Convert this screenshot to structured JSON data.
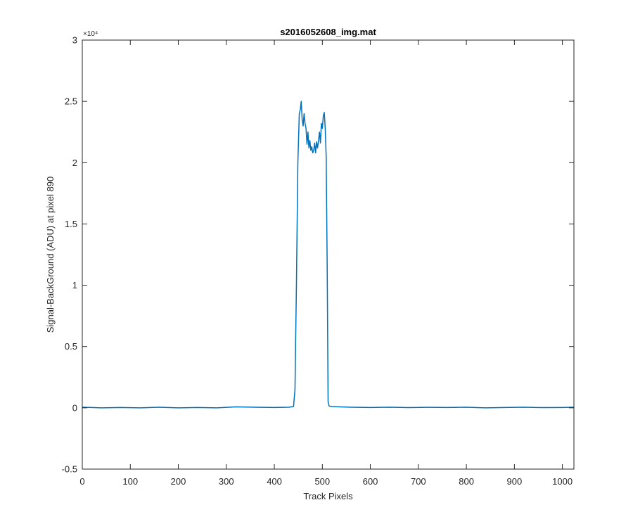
{
  "chart_data": {
    "type": "line",
    "title": "s2016052608_img.mat",
    "xlabel": "Track Pixels",
    "ylabel": "Signal-BackGround (ADU) at pixel 890",
    "xlim": [
      0,
      1024
    ],
    "ylim": [
      -5000,
      30000
    ],
    "x_ticks": [
      0,
      100,
      200,
      300,
      400,
      500,
      600,
      700,
      800,
      900,
      1000
    ],
    "x_tick_labels": [
      "0",
      "100",
      "200",
      "300",
      "400",
      "500",
      "600",
      "700",
      "800",
      "900",
      "1000"
    ],
    "y_ticks": [
      -5000,
      0,
      5000,
      10000,
      15000,
      20000,
      25000,
      30000
    ],
    "y_tick_labels": [
      "-0.5",
      "0",
      "0.5",
      "1",
      "1.5",
      "2",
      "2.5",
      "3"
    ],
    "y_exponent_label": "×10⁴",
    "grid": false,
    "box": true,
    "series": [
      {
        "color": "#0072BD",
        "x": [
          0,
          40,
          80,
          120,
          160,
          200,
          240,
          280,
          320,
          360,
          400,
          430,
          440,
          443,
          446,
          449,
          452,
          454,
          456,
          458,
          460,
          462,
          464,
          466,
          468,
          470,
          472,
          474,
          476,
          478,
          480,
          482,
          484,
          486,
          488,
          490,
          492,
          494,
          496,
          498,
          500,
          502,
          504,
          506,
          508,
          510,
          512,
          514,
          520,
          560,
          600,
          640,
          680,
          720,
          760,
          800,
          840,
          880,
          920,
          960,
          1000,
          1024
        ],
        "y": [
          50,
          0,
          30,
          0,
          50,
          0,
          30,
          0,
          80,
          50,
          30,
          50,
          100,
          1500,
          10000,
          20000,
          24000,
          24300,
          25000,
          23500,
          23000,
          24000,
          23200,
          22800,
          21500,
          22500,
          21200,
          21800,
          21000,
          21300,
          20800,
          21000,
          21600,
          20800,
          21700,
          21200,
          21800,
          22500,
          21600,
          23200,
          22800,
          23800,
          24100,
          22800,
          20500,
          12000,
          500,
          150,
          100,
          50,
          30,
          50,
          20,
          40,
          30,
          50,
          0,
          30,
          50,
          20,
          30,
          50
        ]
      }
    ]
  }
}
